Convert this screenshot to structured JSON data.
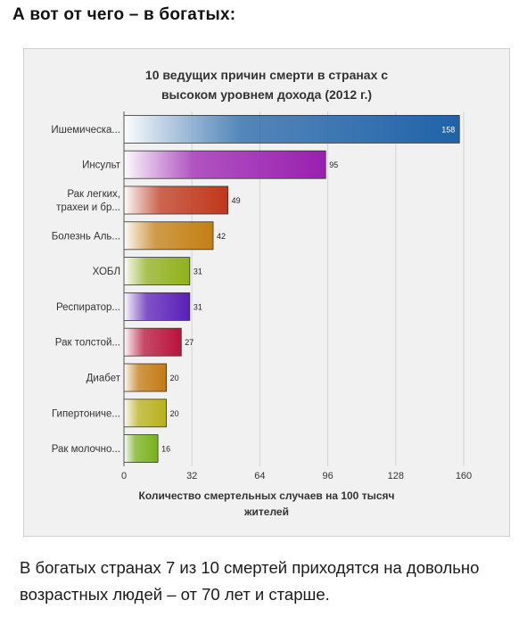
{
  "page": {
    "heading": "А вот от чего – в богатых:",
    "footer": "В богатых странах 7 из 10 смертей приходятся на довольно возрастных людей – от 70 лет и старше."
  },
  "chart_data": {
    "type": "bar",
    "orientation": "horizontal",
    "title_lines": [
      "10 ведущих причин смерти в странах с",
      "высоком уровнем дохода (2012 г.)"
    ],
    "xlabel_lines": [
      "Количество смертельных случаев на 100 тысяч",
      "жителей"
    ],
    "xlim": [
      0,
      160
    ],
    "xticks": [
      0,
      32,
      64,
      96,
      128,
      160
    ],
    "grid": true,
    "categories": [
      [
        "Ишемическа..."
      ],
      [
        "Инсульт"
      ],
      [
        "Рак легких,",
        "трахеи и бр..."
      ],
      [
        "Болезнь Аль..."
      ],
      [
        "ХОБЛ"
      ],
      [
        "Респиратор..."
      ],
      [
        "Рак толстой..."
      ],
      [
        "Диабет"
      ],
      [
        "Гипертониче..."
      ],
      [
        "Рак молочно..."
      ]
    ],
    "values": [
      158,
      95,
      49,
      42,
      31,
      31,
      27,
      20,
      20,
      16
    ],
    "value_labels": [
      "158",
      "95",
      "49",
      "42",
      "31",
      "31",
      "27",
      "20",
      "20",
      "16"
    ],
    "colors": [
      "#1f63a8",
      "#9a1fb0",
      "#c0361a",
      "#c47f12",
      "#8fb21a",
      "#5a1fb8",
      "#b8123a",
      "#c47a12",
      "#b8b21a",
      "#78b21a"
    ]
  }
}
